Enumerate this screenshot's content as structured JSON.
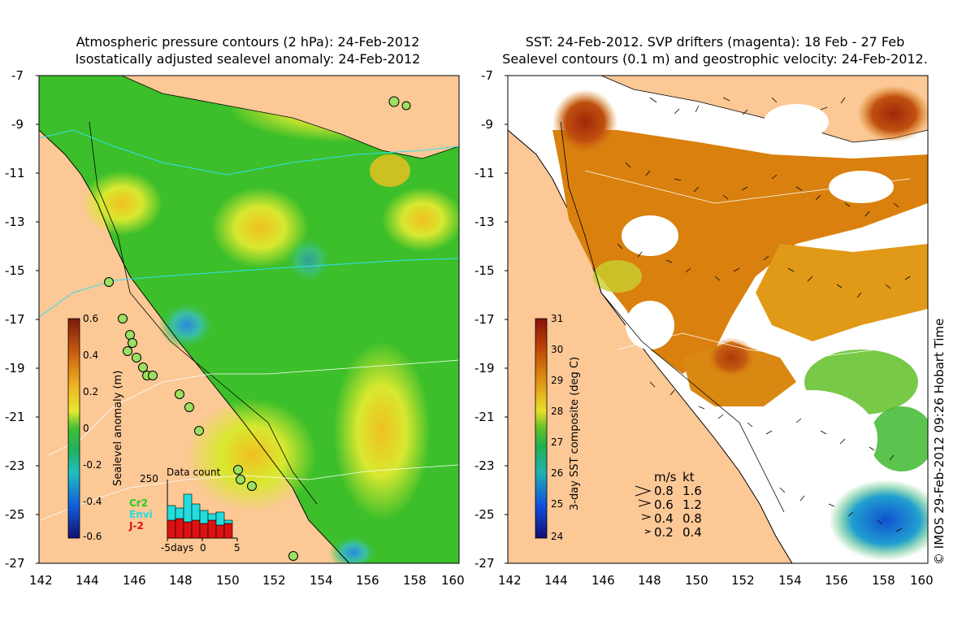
{
  "left_panel": {
    "title_line1": "Atmospheric pressure contours (2 hPa): 24-Feb-2012",
    "title_line2": "Isostatically adjusted sealevel anomaly: 24-Feb-2012",
    "colorbar_label": "Sealevel anomaly (m)",
    "colorbar_ticks": [
      "0.6",
      "0.4",
      "0.2",
      "0",
      "-0.2",
      "-0.4",
      "-0.6"
    ],
    "inset": {
      "title": "Data count",
      "ymax_label": "250",
      "x_label": "-5days",
      "x_zero": "0",
      "x_end": "5",
      "legend": [
        {
          "label": "Cr2",
          "color": "#22cc22"
        },
        {
          "label": "Envi",
          "color": "#22dddd"
        },
        {
          "label": "J-2",
          "color": "#dd1111"
        }
      ]
    }
  },
  "right_panel": {
    "title_line1": "SST: 24-Feb-2012. SVP drifters (magenta): 18 Feb - 27 Feb",
    "title_line2": "Sealevel contours (0.1 m) and geostrophic velocity: 24-Feb-2012.",
    "colorbar_label": "3-day SST composite (deg C)",
    "colorbar_ticks": [
      "31",
      "30",
      "29",
      "28",
      "27",
      "26",
      "25",
      "24"
    ],
    "velocity_legend": {
      "header_ms": "m/s",
      "header_kt": "kt",
      "rows": [
        {
          "ms": "0.8",
          "kt": "1.6"
        },
        {
          "ms": "0.6",
          "kt": "1.2"
        },
        {
          "ms": "0.4",
          "kt": "0.8"
        },
        {
          "ms": "0.2",
          "kt": "0.4"
        }
      ]
    }
  },
  "axes": {
    "lat_ticks": [
      "-7",
      "-9",
      "-11",
      "-13",
      "-15",
      "-17",
      "-19",
      "-21",
      "-23",
      "-25",
      "-27"
    ],
    "lon_ticks": [
      "142",
      "144",
      "146",
      "148",
      "150",
      "152",
      "154",
      "156",
      "158",
      "160"
    ]
  },
  "copyright": "© IMOS 29-Feb-2012 09:26 Hobart Time",
  "colors": {
    "land": "#fbc896",
    "sea_green": "#3cbf2a",
    "sea_yellow": "#d8e830",
    "sst_orange": "#d9800e",
    "sst_brown": "#9c2a08"
  }
}
